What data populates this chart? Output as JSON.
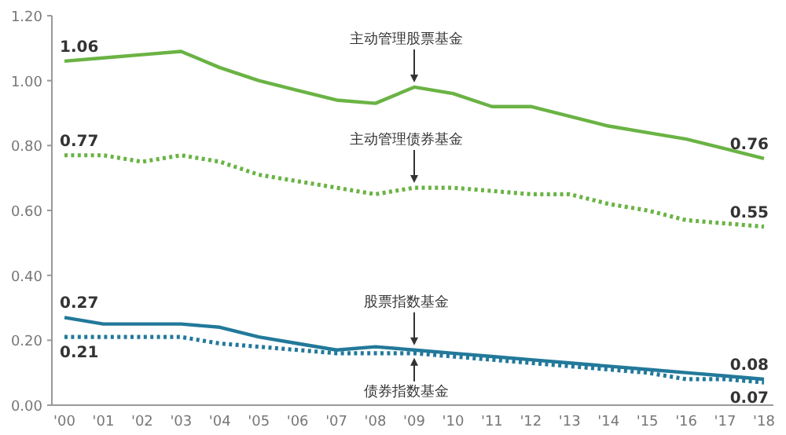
{
  "chart_data": {
    "type": "line",
    "categories": [
      "'00",
      "'01",
      "'02",
      "'03",
      "'04",
      "'05",
      "'06",
      "'07",
      "'08",
      "'09",
      "'10",
      "'11",
      "'12",
      "'13",
      "'14",
      "'15",
      "'16",
      "'17",
      "'18"
    ],
    "series": [
      {
        "color": "#6ab344",
        "line_style": "solid",
        "values": [
          1.06,
          1.07,
          1.08,
          1.09,
          1.04,
          1.0,
          0.97,
          0.94,
          0.93,
          0.98,
          0.96,
          0.92,
          0.92,
          0.89,
          0.86,
          0.84,
          0.82,
          0.79,
          0.76
        ],
        "value_labels": [
          "1.06",
          null,
          null,
          null,
          null,
          null,
          null,
          null,
          null,
          null,
          null,
          null,
          null,
          null,
          null,
          null,
          null,
          null,
          "0.76"
        ]
      },
      {
        "color": "#6ab344",
        "line_style": "dotted",
        "values": [
          0.77,
          0.77,
          0.75,
          0.77,
          0.75,
          0.71,
          0.69,
          0.67,
          0.65,
          0.67,
          0.67,
          0.66,
          0.65,
          0.65,
          0.62,
          0.6,
          0.57,
          0.56,
          0.55
        ],
        "value_labels": [
          "0.77",
          null,
          null,
          null,
          null,
          null,
          null,
          null,
          null,
          null,
          null,
          null,
          null,
          null,
          null,
          null,
          null,
          null,
          "0.55"
        ]
      },
      {
        "color": "#22799a",
        "line_style": "solid",
        "values": [
          0.27,
          0.25,
          0.25,
          0.25,
          0.24,
          0.21,
          0.19,
          0.17,
          0.18,
          0.17,
          0.16,
          0.15,
          0.14,
          0.13,
          0.12,
          0.11,
          0.1,
          0.09,
          0.08
        ],
        "value_labels": [
          "0.27",
          null,
          null,
          null,
          null,
          null,
          null,
          null,
          null,
          null,
          null,
          null,
          null,
          null,
          null,
          null,
          null,
          null,
          "0.08"
        ]
      },
      {
        "color": "#22799a",
        "line_style": "dotted",
        "values": [
          0.21,
          0.21,
          0.21,
          0.21,
          0.19,
          0.18,
          0.17,
          0.16,
          0.16,
          0.16,
          0.15,
          0.14,
          0.13,
          0.12,
          0.11,
          0.1,
          0.08,
          0.08,
          0.07
        ],
        "value_labels": [
          "0.21",
          null,
          null,
          null,
          null,
          null,
          null,
          null,
          null,
          null,
          null,
          null,
          null,
          null,
          null,
          null,
          null,
          null,
          "0.07"
        ]
      }
    ],
    "ylim": [
      0,
      1.2
    ],
    "yticks": [
      {
        "value": 0,
        "label": "0.00"
      },
      {
        "value": 0.2,
        "label": "0.20"
      },
      {
        "value": 0.4,
        "label": "0.40"
      },
      {
        "value": 0.6,
        "label": "0.60"
      },
      {
        "value": 0.8,
        "label": "0.80"
      },
      {
        "value": 1.0,
        "label": "1.00"
      },
      {
        "value": 1.2,
        "label": "1.20"
      }
    ],
    "annotations": [
      {
        "text": "主动管理股票基金",
        "x": "'09",
        "y": 0.98
      },
      {
        "text": "主动管理债券基金",
        "x": "'09",
        "y": 0.67
      },
      {
        "text": "股票指数基金",
        "x": "'09",
        "y": 0.17
      },
      {
        "text": "债券指数基金",
        "x": "'09",
        "y": 0.16
      }
    ],
    "grid": false,
    "legend": false
  }
}
